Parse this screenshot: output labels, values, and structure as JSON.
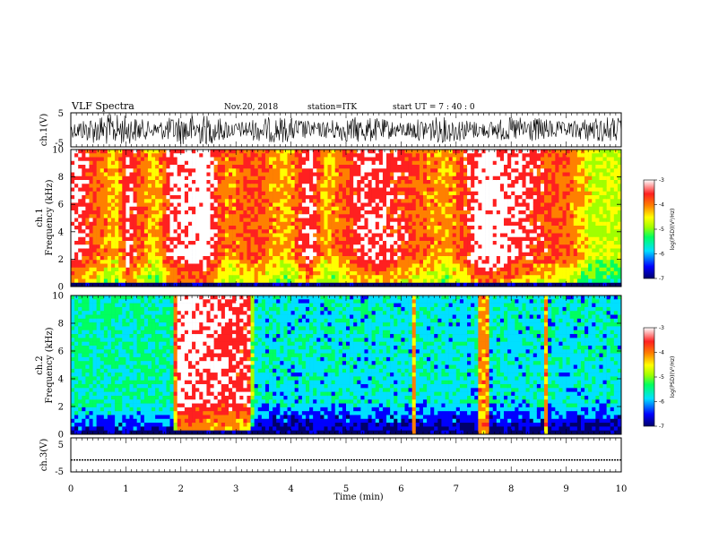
{
  "header": {
    "title": "VLF Spectra",
    "date": "Nov.20, 2018",
    "station": "station=ITK",
    "start_ut": "start UT =  7 : 40 : 0"
  },
  "colors": {
    "colormap": [
      "#00006a",
      "#0000ff",
      "#00e0ff",
      "#00ff60",
      "#a0ff00",
      "#ffff00",
      "#ff8000",
      "#ff2020",
      "#ffffff"
    ]
  },
  "chart_data": [
    {
      "id": "ch1_waveform",
      "type": "line",
      "ylabel": "ch.1(V)",
      "ylim": [
        -5,
        5
      ],
      "yticks": [
        "5",
        "-5"
      ],
      "xlim": [
        0,
        10
      ]
    },
    {
      "id": "ch1_spectrogram",
      "type": "heatmap",
      "ylabel_line1": "ch.1",
      "ylabel_line2": "Frequency  (kHz)",
      "ylim": [
        0,
        10
      ],
      "yticks": [
        "0",
        "2",
        "4",
        "6",
        "8",
        "10"
      ],
      "xlim": [
        0,
        10
      ],
      "colorbar": {
        "label": "log(PSD)(V²/Hz)",
        "ticks": [
          "-3",
          "-4",
          "-5",
          "-6",
          "-7"
        ],
        "range": [
          -7,
          -3
        ]
      },
      "intensity_by_minute": [
        {
          "t": 0.0,
          "level": -3.3
        },
        {
          "t": 0.8,
          "level": -4.4
        },
        {
          "t": 1.0,
          "level": -3.4
        },
        {
          "t": 1.5,
          "level": -4.5
        },
        {
          "t": 1.8,
          "level": -3.4
        },
        {
          "t": 2.4,
          "level": -3.1
        },
        {
          "t": 2.8,
          "level": -4.2
        },
        {
          "t": 3.3,
          "level": -3.8
        },
        {
          "t": 3.9,
          "level": -4.4
        },
        {
          "t": 4.3,
          "level": -3.3
        },
        {
          "t": 4.6,
          "level": -4.4
        },
        {
          "t": 5.3,
          "level": -3.4
        },
        {
          "t": 6.0,
          "level": -3.7
        },
        {
          "t": 6.8,
          "level": -4.3
        },
        {
          "t": 7.5,
          "level": -3.1
        },
        {
          "t": 8.3,
          "level": -3.6
        },
        {
          "t": 9.0,
          "level": -4.0
        },
        {
          "t": 9.5,
          "level": -4.8
        },
        {
          "t": 10.0,
          "level": -4.8
        }
      ]
    },
    {
      "id": "ch2_spectrogram",
      "type": "heatmap",
      "ylabel_line1": "ch.2",
      "ylabel_line2": "Frequency  (kHz)",
      "ylim": [
        0,
        10
      ],
      "yticks": [
        "0",
        "2",
        "4",
        "6",
        "8",
        "10"
      ],
      "xlim": [
        0,
        10
      ],
      "colorbar": {
        "label": "log(PSD)(V²/Hz)",
        "ticks": [
          "-3",
          "-4",
          "-5",
          "-6",
          "-7"
        ],
        "range": [
          -7,
          -3
        ]
      },
      "intensity_by_minute": [
        {
          "t": 0.0,
          "level": -5.6
        },
        {
          "t": 1.8,
          "level": -5.6
        },
        {
          "t": 1.9,
          "level": -3.3
        },
        {
          "t": 3.2,
          "level": -3.6
        },
        {
          "t": 3.3,
          "level": -5.8
        },
        {
          "t": 10.0,
          "level": -5.8
        }
      ],
      "bright_bursts_min": [
        6.2,
        7.4,
        7.5,
        8.6
      ]
    },
    {
      "id": "ch3_waveform",
      "type": "line",
      "ylabel": "ch.3(V)",
      "ylim": [
        -5,
        5
      ],
      "yticks": [
        "5",
        "-5"
      ],
      "xlim": [
        0,
        10
      ],
      "baseline_value": -1.5,
      "xlabel": "Time  (min)",
      "xticks": [
        "0",
        "1",
        "2",
        "3",
        "4",
        "5",
        "6",
        "7",
        "8",
        "9",
        "10"
      ]
    }
  ]
}
